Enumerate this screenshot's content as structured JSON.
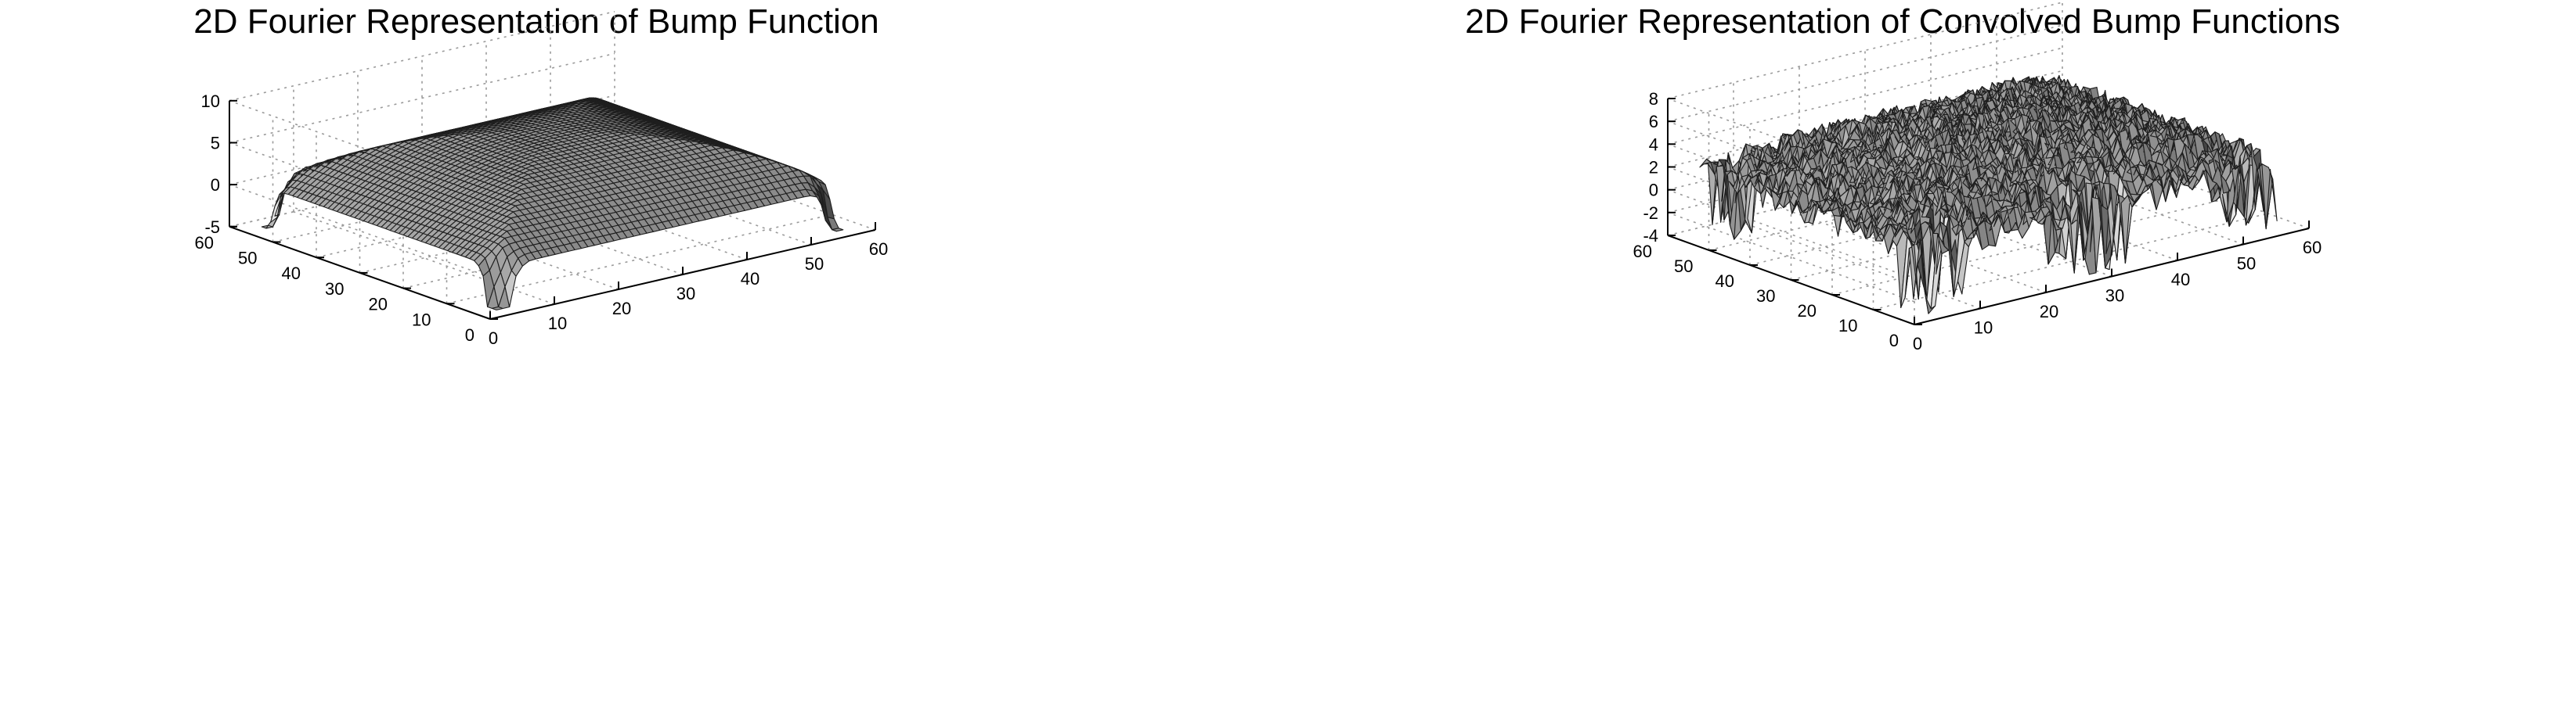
{
  "chart_data": [
    {
      "type": "surface",
      "title": "2D Fourier Representation of Bump Function",
      "xlabel": "",
      "ylabel": "",
      "zlabel": "",
      "x_ticks": [
        0,
        10,
        20,
        30,
        40,
        50,
        60
      ],
      "x_tick_labels": [
        "0",
        "10",
        "20",
        "30",
        "40",
        "50",
        "60"
      ],
      "y_ticks": [
        0,
        10,
        20,
        30,
        40,
        50,
        60
      ],
      "y_tick_labels": [
        "0",
        "10",
        "20",
        "30",
        "40",
        "50",
        "60"
      ],
      "z_ticks": [
        -5,
        0,
        5,
        10
      ],
      "z_tick_labels": [
        "-5",
        "0",
        "5",
        "10"
      ],
      "xlim": [
        0,
        60
      ],
      "ylim": [
        0,
        60
      ],
      "zlim": [
        -5,
        10
      ],
      "grid": true,
      "colormap": "gray",
      "surface_summary": {
        "grid_size": [
          54,
          54
        ],
        "center_value": 6.5,
        "edge_value": 0,
        "corner_dip_min": -5
      }
    },
    {
      "type": "surface",
      "title": "2D Fourier Representation of Convolved Bump Functions",
      "xlabel": "",
      "ylabel": "",
      "zlabel": "",
      "x_ticks": [
        0,
        10,
        20,
        30,
        40,
        50,
        60
      ],
      "x_tick_labels": [
        "0",
        "10",
        "20",
        "30",
        "40",
        "50",
        "60"
      ],
      "y_ticks": [
        0,
        10,
        20,
        30,
        40,
        50,
        60
      ],
      "y_tick_labels": [
        "0",
        "10",
        "20",
        "30",
        "40",
        "50",
        "60"
      ],
      "z_ticks": [
        -4,
        -2,
        0,
        2,
        4,
        6,
        8
      ],
      "z_tick_labels": [
        "-4",
        "-2",
        "0",
        "2",
        "4",
        "6",
        "8"
      ],
      "xlim": [
        0,
        60
      ],
      "ylim": [
        0,
        60
      ],
      "zlim": [
        -4,
        8
      ],
      "grid": true,
      "colormap": "gray",
      "surface_summary": {
        "grid_size": [
          54,
          54
        ],
        "center_value": 5.5,
        "edge_value": 1.5,
        "spike_min": -4,
        "noisy": true
      }
    }
  ]
}
